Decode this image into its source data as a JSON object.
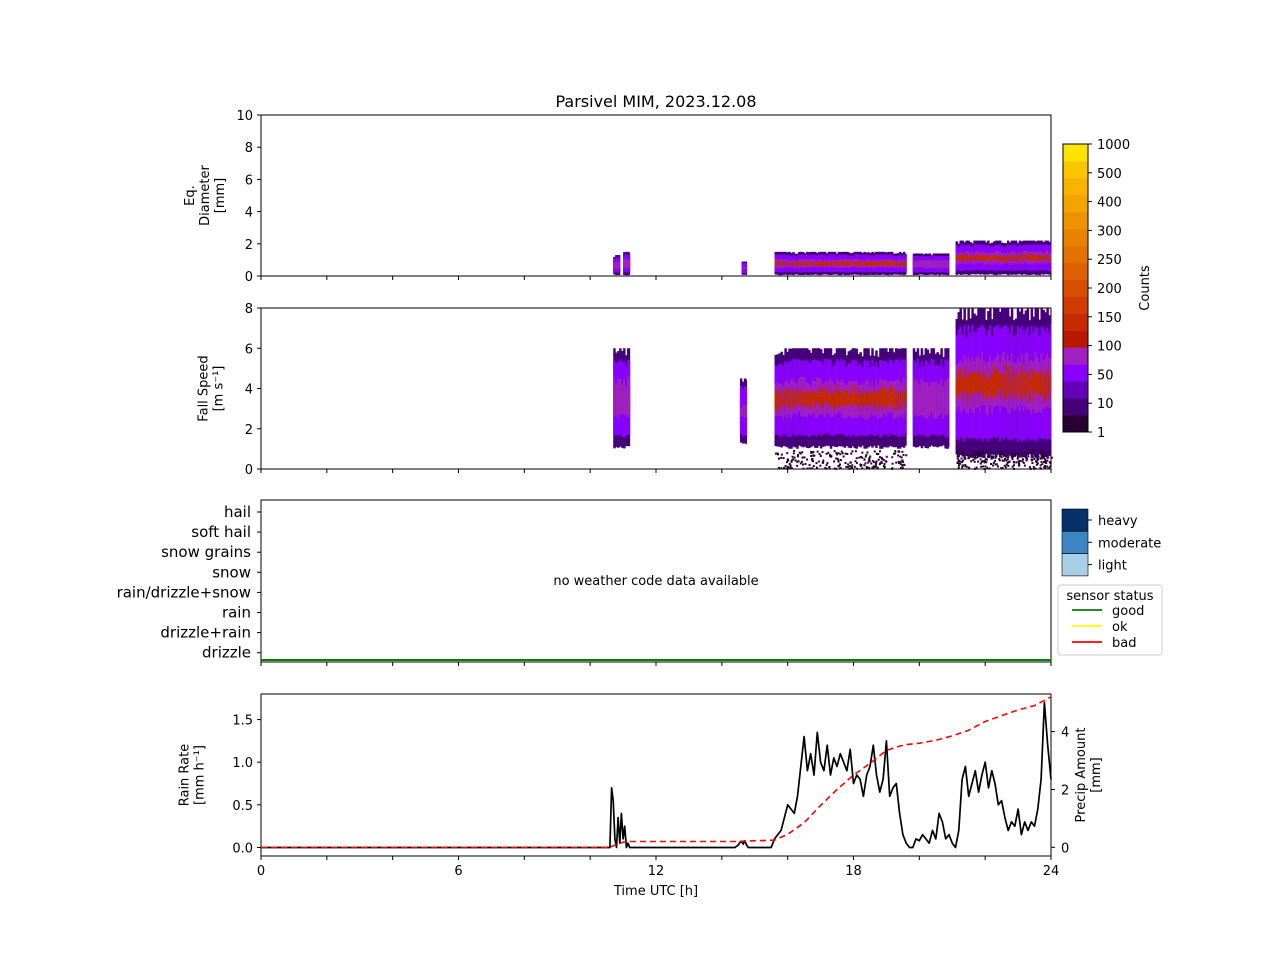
{
  "title": "Parsivel MIM, 2023.12.08",
  "chart_data": [
    {
      "panel": "eq-diameter",
      "type": "heatmap",
      "ylabel": [
        "Eq.",
        "Diameter",
        "[mm]"
      ],
      "ylim": [
        0,
        10
      ],
      "yticks": [
        0,
        2,
        4,
        6,
        8,
        10
      ],
      "xlim": [
        0,
        24
      ],
      "segments": [
        {
          "x": [
            10.7,
            10.9
          ],
          "top": 1.3,
          "intensity": "mid"
        },
        {
          "x": [
            11.0,
            11.2
          ],
          "top": 1.5,
          "intensity": "mid"
        },
        {
          "x": [
            14.6,
            14.75
          ],
          "top": 0.9,
          "intensity": "low"
        },
        {
          "x": [
            15.6,
            19.6
          ],
          "top": 1.5,
          "intensity": "high"
        },
        {
          "x": [
            19.8,
            20.9
          ],
          "top": 1.4,
          "intensity": "mid"
        },
        {
          "x": [
            21.1,
            24.0
          ],
          "top": 2.2,
          "intensity": "high"
        }
      ]
    },
    {
      "panel": "fall-speed",
      "type": "heatmap",
      "ylabel": [
        "Fall Speed",
        "[m s⁻¹]"
      ],
      "ylim": [
        0,
        8
      ],
      "yticks": [
        0,
        2,
        4,
        6,
        8
      ],
      "xlim": [
        0,
        24
      ],
      "segments": [
        {
          "x": [
            10.7,
            11.2
          ],
          "low": 1.0,
          "high": 6.0,
          "intensity": "mid"
        },
        {
          "x": [
            14.55,
            14.75
          ],
          "low": 1.2,
          "high": 4.5,
          "intensity": "low"
        },
        {
          "x": [
            15.6,
            19.6
          ],
          "low": 1.0,
          "high": 6.0,
          "intensity": "high"
        },
        {
          "x": [
            19.8,
            20.9
          ],
          "low": 1.0,
          "high": 6.0,
          "intensity": "mid"
        },
        {
          "x": [
            21.1,
            24.0
          ],
          "low": 0.5,
          "high": 8.0,
          "intensity": "high"
        }
      ]
    },
    {
      "panel": "weather-code",
      "type": "heatmap",
      "categories": [
        "hail",
        "soft hail",
        "snow grains",
        "snow",
        "rain/drizzle+snow",
        "rain",
        "drizzle+rain",
        "drizzle"
      ],
      "annotation": "no weather code data available",
      "intensity_legend": [
        "heavy",
        "moderate",
        "light"
      ],
      "intensity_colors": [
        "#08306b",
        "#3a87c4",
        "#a9cfe6"
      ],
      "status_legend_title": "sensor status",
      "status_legend": [
        {
          "name": "good",
          "color": "#008000"
        },
        {
          "name": "ok",
          "color": "#ffff00"
        },
        {
          "name": "bad",
          "color": "#ff0000"
        }
      ],
      "status_series": {
        "status": "good",
        "x": [
          0,
          24
        ]
      }
    },
    {
      "panel": "rain",
      "type": "line",
      "xlabel": "Time UTC [h]",
      "xticks": [
        0,
        6,
        12,
        18,
        24
      ],
      "xlim": [
        0,
        24
      ],
      "ylabel": [
        "Rain Rate",
        "[mm h⁻¹]"
      ],
      "ylim": [
        -0.1,
        1.8
      ],
      "yticks": [
        "0.0",
        "0.5",
        "1.0",
        "1.5"
      ],
      "ylabel_right": [
        "Precip Amount",
        "[mm]"
      ],
      "ylim_right": [
        -0.3,
        5.3
      ],
      "yticks_right": [
        0,
        2,
        4
      ],
      "series": [
        {
          "axis": "left",
          "color": "#000000",
          "style": "solid",
          "x": [
            0,
            10.6,
            10.65,
            10.7,
            10.75,
            10.8,
            10.85,
            10.9,
            10.95,
            11.0,
            11.05,
            11.1,
            11.15,
            11.2,
            11.3,
            14.4,
            14.5,
            14.55,
            14.6,
            14.65,
            14.7,
            14.75,
            14.8,
            15.2,
            15.3,
            15.5,
            15.6,
            15.8,
            16.0,
            16.2,
            16.3,
            16.4,
            16.5,
            16.6,
            16.7,
            16.8,
            16.9,
            17.0,
            17.1,
            17.2,
            17.3,
            17.4,
            17.5,
            17.6,
            17.7,
            17.8,
            17.9,
            18.0,
            18.1,
            18.2,
            18.3,
            18.4,
            18.5,
            18.6,
            18.7,
            18.8,
            18.9,
            19.0,
            19.1,
            19.2,
            19.3,
            19.4,
            19.5,
            19.6,
            19.7,
            19.8,
            19.9,
            20.0,
            20.1,
            20.2,
            20.3,
            20.4,
            20.5,
            20.6,
            20.7,
            20.8,
            20.9,
            21.0,
            21.1,
            21.2,
            21.3,
            21.4,
            21.5,
            21.6,
            21.7,
            21.8,
            21.9,
            22.0,
            22.1,
            22.2,
            22.3,
            22.4,
            22.5,
            22.6,
            22.7,
            22.8,
            22.9,
            23.0,
            23.1,
            23.2,
            23.3,
            23.4,
            23.5,
            23.6,
            23.7,
            23.8,
            23.9,
            24.0
          ],
          "y": [
            0,
            0,
            0.7,
            0.55,
            0.1,
            0.0,
            0.35,
            0.05,
            0.4,
            0.1,
            0.25,
            0.0,
            0.05,
            0.0,
            0,
            0,
            0.03,
            0.06,
            0.07,
            0.04,
            0.08,
            0.03,
            0,
            0,
            0,
            0,
            0.1,
            0.2,
            0.5,
            0.4,
            0.6,
            0.95,
            1.3,
            0.9,
            1.1,
            0.85,
            1.35,
            1.0,
            0.9,
            1.2,
            0.85,
            1.05,
            0.95,
            1.1,
            1.0,
            0.9,
            1.15,
            0.75,
            0.85,
            0.8,
            0.6,
            0.85,
            0.95,
            1.2,
            0.85,
            0.65,
            0.8,
            1.25,
            0.6,
            0.7,
            0.75,
            0.4,
            0.15,
            0.05,
            0.0,
            0.0,
            0.1,
            0.08,
            0.15,
            0.1,
            0.05,
            0.2,
            0.1,
            0.4,
            0.3,
            0.1,
            0.15,
            0.05,
            0.0,
            0.2,
            0.8,
            0.95,
            0.6,
            0.75,
            0.9,
            0.65,
            0.85,
            1.0,
            0.7,
            0.9,
            0.75,
            0.5,
            0.55,
            0.35,
            0.2,
            0.3,
            0.25,
            0.45,
            0.15,
            0.3,
            0.2,
            0.3,
            0.25,
            0.45,
            0.8,
            1.7,
            1.2,
            0.8
          ]
        },
        {
          "axis": "right",
          "color": "#ff0000",
          "style": "dashed",
          "x": [
            0,
            10.6,
            10.8,
            11.0,
            11.2,
            14.4,
            14.8,
            15.6,
            16.0,
            16.5,
            17.0,
            17.5,
            18.0,
            18.5,
            19.0,
            19.4,
            19.6,
            20.0,
            20.5,
            21.0,
            21.5,
            22.0,
            22.5,
            23.0,
            23.5,
            24.0
          ],
          "y": [
            0,
            0,
            0.1,
            0.18,
            0.2,
            0.2,
            0.22,
            0.25,
            0.45,
            0.85,
            1.45,
            2.0,
            2.5,
            2.9,
            3.35,
            3.5,
            3.55,
            3.6,
            3.7,
            3.85,
            4.05,
            4.35,
            4.55,
            4.75,
            4.9,
            5.2
          ]
        }
      ]
    }
  ],
  "colorbar": {
    "label": "Counts",
    "tick_labels": [
      "1",
      "10",
      "50",
      "100",
      "150",
      "200",
      "250",
      "300",
      "400",
      "500",
      "1000"
    ],
    "colors": [
      "#2a0033",
      "#45007a",
      "#6400b8",
      "#8a00ff",
      "#a020c0",
      "#b81800",
      "#c62a00",
      "#d03c00",
      "#d84e00",
      "#de6000",
      "#e47200",
      "#e98200",
      "#ee9200",
      "#f2a400",
      "#f6b400",
      "#f9c600",
      "#fce400"
    ]
  }
}
